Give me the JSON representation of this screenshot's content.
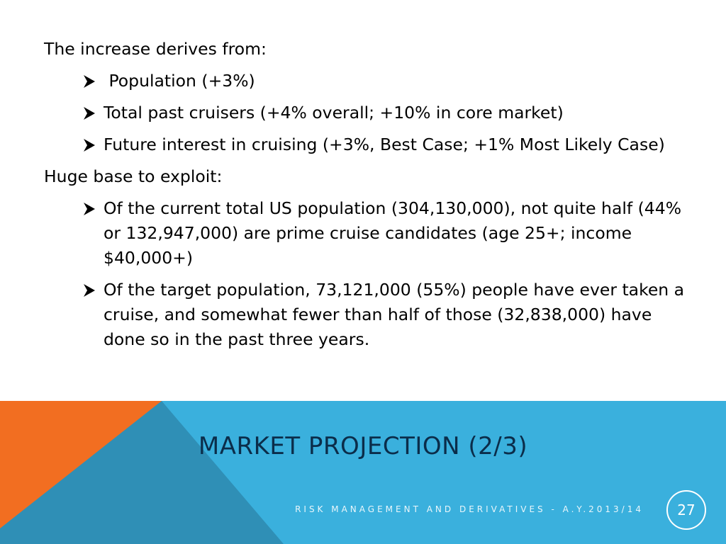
{
  "slide": {
    "para1": "The increase derives from:",
    "bullets1": [
      " Population (+3%)",
      "Total past cruisers (+4% overall; +10% in core market)",
      "Future interest in cruising (+3%, Best Case; +1% Most Likely Case)"
    ],
    "para2": "Huge base to exploit:",
    "bullets2": [
      "Of the current total US population (304,130,000), not quite half (44% or 132,947,000) are prime cruise candidates (age 25+; income $40,000+)",
      "Of the target population, 73,121,000 (55%) people have ever taken a cruise, and somewhat fewer than half of those (32,838,000) have done so in the past three years."
    ]
  },
  "footer": {
    "title": "Market Projection (2/3)",
    "subtitle": "RISK MANAGEMENT AND DERIVATIVES - A.Y.2013/14",
    "page_number": "27"
  },
  "colors": {
    "band_blue": "#3ab0dd",
    "band_dark": "#2f8fb6",
    "accent_orange": "#f26e21",
    "title_color": "#0b2d4a"
  },
  "icons": {
    "bullet": "arrowhead-bullet-icon"
  }
}
